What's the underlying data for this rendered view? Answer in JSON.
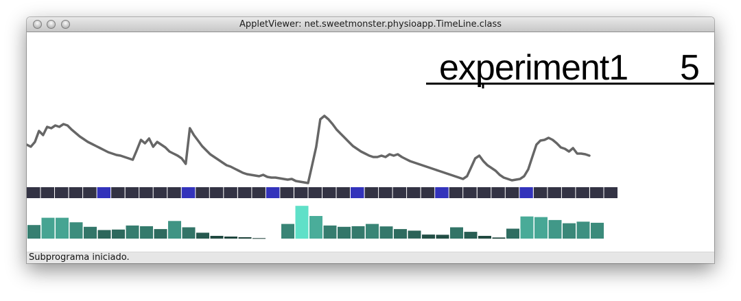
{
  "window": {
    "title": "AppletViewer: net.sweetmonster.physioapp.TimeLine.class"
  },
  "header": {
    "experiment_name": "experiment1",
    "count": "5"
  },
  "statusbar": {
    "text": "Subprograma iniciado."
  },
  "colors": {
    "signal_line": "#666666",
    "segment_dark": "#333344",
    "segment_highlight": "#3333bb",
    "bar_dark": "#1a3b34",
    "bar_light": "#5fe0c8"
  },
  "timeline": {
    "segments": 42,
    "highlighted": [
      5,
      11,
      17,
      23,
      29,
      35
    ]
  },
  "bars": {
    "group1": [
      0.6,
      0.92,
      0.92,
      0.72,
      0.52,
      0.38,
      0.4,
      0.58,
      0.55,
      0.42,
      0.78,
      0.5,
      0.26,
      0.12,
      0.09,
      0.06,
      0.02
    ],
    "group2": [
      0.65,
      1.45,
      1.0,
      0.58,
      0.52,
      0.55,
      0.65,
      0.54,
      0.42,
      0.35,
      0.18,
      0.17,
      0.5,
      0.3,
      0.12,
      0.05,
      0.44,
      0.98,
      0.95,
      0.82,
      0.68,
      0.75,
      0.7
    ]
  },
  "signal": [
    0.42,
    0.45,
    0.38,
    0.22,
    0.28,
    0.16,
    0.18,
    0.14,
    0.16,
    0.12,
    0.14,
    0.2,
    0.25,
    0.3,
    0.34,
    0.38,
    0.41,
    0.44,
    0.47,
    0.5,
    0.53,
    0.55,
    0.57,
    0.58,
    0.6,
    0.62,
    0.64,
    0.5,
    0.35,
    0.4,
    0.33,
    0.45,
    0.38,
    0.42,
    0.46,
    0.52,
    0.55,
    0.58,
    0.62,
    0.7,
    0.18,
    0.28,
    0.36,
    0.44,
    0.5,
    0.56,
    0.6,
    0.64,
    0.68,
    0.72,
    0.74,
    0.77,
    0.8,
    0.83,
    0.85,
    0.86,
    0.87,
    0.88,
    0.86,
    0.89,
    0.9,
    0.9,
    0.91,
    0.92,
    0.93,
    0.92,
    0.95,
    0.96,
    0.97,
    0.98,
    0.72,
    0.45,
    0.05,
    0.0,
    0.05,
    0.12,
    0.2,
    0.26,
    0.32,
    0.38,
    0.44,
    0.48,
    0.52,
    0.55,
    0.58,
    0.6,
    0.6,
    0.58,
    0.6,
    0.56,
    0.58,
    0.56,
    0.6,
    0.63,
    0.66,
    0.68,
    0.7,
    0.72,
    0.74,
    0.76,
    0.78,
    0.8,
    0.82,
    0.84,
    0.86,
    0.88,
    0.9,
    0.92,
    0.88,
    0.75,
    0.62,
    0.58,
    0.66,
    0.72,
    0.76,
    0.8,
    0.86,
    0.9,
    0.92,
    0.94,
    0.93,
    0.92,
    0.88,
    0.78,
    0.6,
    0.42,
    0.36,
    0.35,
    0.32,
    0.35,
    0.4,
    0.46,
    0.48,
    0.52,
    0.47,
    0.55,
    0.55,
    0.56,
    0.58
  ]
}
